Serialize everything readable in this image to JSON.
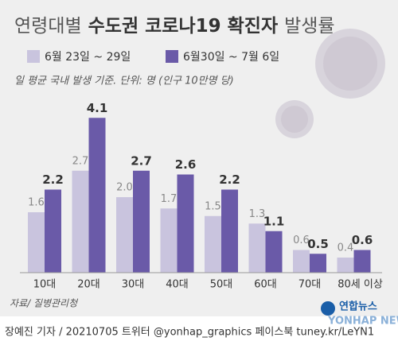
{
  "chart_data": {
    "type": "bar",
    "title": [
      "연령대별",
      "수도권 코로나19 확진자",
      "발생률"
    ],
    "subtitle": "일 평균 국내 발생 기준. 단위: 명 (인구 10만명 당)",
    "categories": [
      "10대",
      "20대",
      "30대",
      "40대",
      "50대",
      "60대",
      "70대",
      "80세 이상"
    ],
    "series": [
      {
        "name": "6월 23일 ~ 29일",
        "color": "#c9c4de",
        "values": [
          1.6,
          2.7,
          2.0,
          1.7,
          1.5,
          1.3,
          0.6,
          0.4
        ],
        "value_labels": [
          "1.6",
          "2.7",
          "2.0",
          "1.7",
          "1.5",
          "1.3",
          "0.6",
          "0.4"
        ]
      },
      {
        "name": "6월30일 ~ 7월 6일",
        "color": "#6a5aa8",
        "values": [
          2.2,
          4.1,
          2.7,
          2.6,
          2.2,
          1.1,
          0.5,
          0.6
        ],
        "value_labels": [
          "2.2",
          "4.1",
          "2.7",
          "2.6",
          "2.2",
          "1.1",
          "0.5",
          "0.6"
        ]
      }
    ],
    "source": "자료/ 질병관리청",
    "footer": "장예진 기자 / 20210705 트위터 @yonhap_graphics  페이스북 tuney.kr/LeYN1",
    "logo": "연합뉴스",
    "logo_en": "YONHAP NEWS"
  }
}
